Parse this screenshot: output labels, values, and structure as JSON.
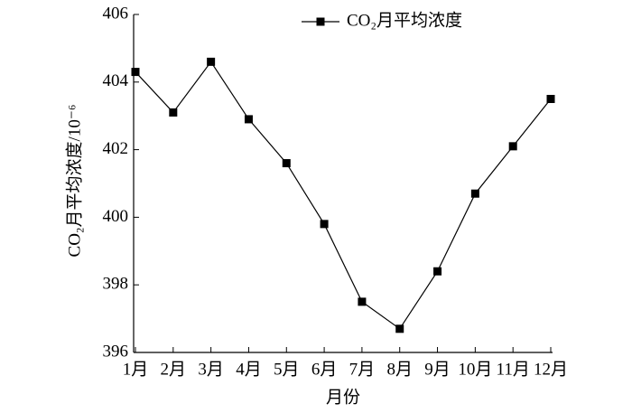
{
  "chart_data": {
    "type": "line",
    "xlabel": "月份",
    "ylabel": "CO₂月平均浓度/10⁻⁶",
    "categories": [
      "1月",
      "2月",
      "3月",
      "4月",
      "5月",
      "6月",
      "7月",
      "8月",
      "9月",
      "10月",
      "11月",
      "12月"
    ],
    "series": [
      {
        "name": "CO₂月平均浓度",
        "color": "#000000",
        "values": [
          404.3,
          403.1,
          404.6,
          402.9,
          401.6,
          399.8,
          397.5,
          396.7,
          398.4,
          400.7,
          402.1,
          403.5
        ]
      }
    ],
    "ylim": [
      396,
      406
    ],
    "yticks": [
      396,
      398,
      400,
      402,
      404,
      406
    ],
    "grid": false,
    "legend": "top"
  }
}
